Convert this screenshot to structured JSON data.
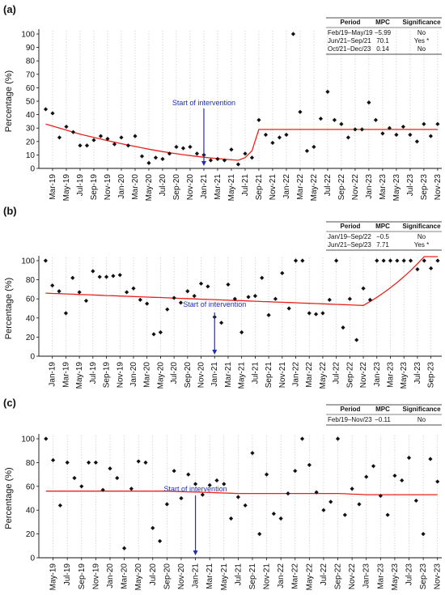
{
  "chart_data": [
    {
      "type": "scatter",
      "panel_label": "(a)",
      "ylabel": "Percentage (%)",
      "ylim": [
        0,
        100
      ],
      "yticks": [
        0,
        10,
        20,
        30,
        40,
        50,
        60,
        70,
        80,
        90,
        100
      ],
      "grid": "vertical dotted",
      "tick_labels": [
        "Mar-19",
        "May-19",
        "Jul-19",
        "Sep-19",
        "Nov-19",
        "Jan-20",
        "Mar-20",
        "May-20",
        "Jul-20",
        "Sep-20",
        "Nov-20",
        "Jan-21",
        "Mar-21",
        "May-21",
        "Jul-21",
        "Sep-21",
        "Nov-21",
        "Jan-22",
        "Mar-22",
        "May-22",
        "Jul-22",
        "Sep-22",
        "Nov-22",
        "Jan-23",
        "Mar-23",
        "May-23",
        "Jul-23",
        "Sep-23",
        "Nov-23"
      ],
      "x": [
        "Feb-19",
        "Mar-19",
        "Apr-19",
        "May-19",
        "Jun-19",
        "Jul-19",
        "Aug-19",
        "Sep-19",
        "Oct-19",
        "Nov-19",
        "Dec-19",
        "Jan-20",
        "Feb-20",
        "Mar-20",
        "Apr-20",
        "May-20",
        "Jun-20",
        "Jul-20",
        "Aug-20",
        "Sep-20",
        "Oct-20",
        "Nov-20",
        "Dec-20",
        "Jan-21",
        "Feb-21",
        "Mar-21",
        "Apr-21",
        "May-21",
        "Jun-21",
        "Jul-21",
        "Aug-21",
        "Sep-21",
        "Oct-21",
        "Nov-21",
        "Dec-21",
        "Jan-22",
        "Feb-22",
        "Mar-22",
        "Apr-22",
        "May-22",
        "Jun-22",
        "Jul-22",
        "Aug-22",
        "Sep-22",
        "Oct-22",
        "Nov-22",
        "Dec-22",
        "Jan-23",
        "Feb-23",
        "Mar-23",
        "Apr-23",
        "May-23",
        "Jun-23",
        "Jul-23",
        "Aug-23",
        "Sep-23",
        "Oct-23",
        "Nov-23"
      ],
      "observed": [
        44,
        41,
        23,
        31,
        27,
        17,
        17,
        21,
        24,
        22,
        18,
        23,
        17,
        24,
        9,
        4,
        8,
        7,
        11,
        16,
        15,
        16,
        11,
        10,
        6,
        7,
        6,
        14,
        3,
        11,
        8,
        36,
        25,
        19,
        23,
        25,
        100,
        42,
        13,
        16,
        37,
        57,
        36,
        33,
        23,
        29,
        29,
        49,
        36,
        26,
        30,
        25,
        31,
        25,
        20,
        33,
        24,
        33
      ],
      "trend": [
        33,
        31.5,
        30,
        28.5,
        27,
        25.5,
        24.2,
        23,
        21.8,
        20.6,
        19.5,
        18.4,
        17.3,
        16.3,
        15.3,
        14.3,
        13.4,
        12.5,
        11.7,
        10.9,
        10.2,
        9.5,
        8.9,
        8.3,
        7.8,
        7.3,
        6.8,
        6.4,
        6,
        8,
        13,
        29,
        29,
        29,
        29,
        29,
        29,
        29,
        29,
        29,
        29,
        29,
        29,
        29,
        29,
        29,
        29,
        29,
        29,
        29,
        29,
        29,
        29,
        29,
        29,
        29,
        29,
        29
      ],
      "intervention": {
        "label": "Start of intervention",
        "x": "Jan-21"
      },
      "table": {
        "headers": [
          "Period",
          "MPC",
          "Significance"
        ],
        "rows": [
          [
            "Feb/19–May/19",
            "−5.99",
            "No"
          ],
          [
            "Jun/21–Sep/21",
            "70.1",
            "Yes *"
          ],
          [
            "Oct/21–Dec/23",
            "0.14",
            "No"
          ]
        ]
      }
    },
    {
      "type": "scatter",
      "panel_label": "(b)",
      "ylabel": "Percentage (%)",
      "ylim": [
        0,
        100
      ],
      "yticks": [
        0,
        20,
        40,
        60,
        80,
        100
      ],
      "grid": "vertical dotted",
      "tick_labels": [
        "Jan-19",
        "Mar-19",
        "May-19",
        "Jul-19",
        "Sep-19",
        "Nov-19",
        "Jan-20",
        "Mar-20",
        "May-20",
        "Jul-20",
        "Sep-20",
        "Nov-20",
        "Jan-21",
        "Mar-21",
        "May-21",
        "Jul-21",
        "Sep-21",
        "Nov-21",
        "Jan-22",
        "Mar-22",
        "May-22",
        "Jul-22",
        "Sep-22",
        "Nov-22",
        "Jan-23",
        "Mar-23",
        "May-23",
        "Jul-23",
        "Sep-23"
      ],
      "x": [
        "Dec-18",
        "Jan-19",
        "Feb-19",
        "Mar-19",
        "Apr-19",
        "May-19",
        "Jun-19",
        "Jul-19",
        "Aug-19",
        "Sep-19",
        "Oct-19",
        "Nov-19",
        "Dec-19",
        "Jan-20",
        "Feb-20",
        "Mar-20",
        "Apr-20",
        "May-20",
        "Jun-20",
        "Jul-20",
        "Aug-20",
        "Sep-20",
        "Oct-20",
        "Nov-20",
        "Dec-20",
        "Jan-21",
        "Feb-21",
        "Mar-21",
        "Apr-21",
        "May-21",
        "Jun-21",
        "Jul-21",
        "Aug-21",
        "Sep-21",
        "Oct-21",
        "Nov-21",
        "Dec-21",
        "Jan-22",
        "Feb-22",
        "Mar-22",
        "Apr-22",
        "May-22",
        "Jun-22",
        "Jul-22",
        "Aug-22",
        "Sep-22",
        "Oct-22",
        "Nov-22",
        "Dec-22",
        "Jan-23",
        "Feb-23",
        "Mar-23",
        "Apr-23",
        "May-23",
        "Jun-23",
        "Jul-23",
        "Aug-23",
        "Sep-23",
        "Oct-23"
      ],
      "observed": [
        100,
        74,
        68,
        45,
        82,
        67,
        58,
        89,
        83,
        83,
        84,
        85,
        67,
        71,
        59,
        55,
        23,
        25,
        49,
        61,
        56,
        68,
        63,
        76,
        73,
        41,
        35,
        75,
        60,
        25,
        62,
        63,
        82,
        43,
        60,
        87,
        50,
        100,
        100,
        45,
        44,
        45,
        59,
        100,
        30,
        60,
        17,
        71,
        59,
        100,
        100,
        100,
        100,
        100,
        100,
        91,
        100,
        92,
        100
      ],
      "trend": [
        66,
        65.7,
        65.5,
        65.2,
        64.9,
        64.6,
        64.4,
        64.1,
        63.8,
        63.5,
        63.3,
        63,
        62.7,
        62.5,
        62.2,
        61.9,
        61.6,
        61.4,
        61.1,
        60.8,
        60.5,
        60.3,
        60,
        59.7,
        59.4,
        59.2,
        58.9,
        58.6,
        58.3,
        58.1,
        57.8,
        57.5,
        57.2,
        57,
        56.7,
        56.4,
        56.2,
        55.9,
        55.6,
        55.3,
        55.1,
        54.8,
        54.5,
        54.2,
        54,
        53.7,
        53.4,
        53.1,
        57.2,
        61.6,
        66.4,
        71.6,
        77.2,
        83.2,
        89.7,
        96.7,
        104.2,
        104.2,
        104.2
      ],
      "intervention": {
        "label": "Start of intervention",
        "x": "Jan-21"
      },
      "table": {
        "headers": [
          "Period",
          "MPC",
          "Significance"
        ],
        "rows": [
          [
            "Jan/19–Sep/22",
            "−0.5",
            "No"
          ],
          [
            "Jun/21–Sep/23",
            "7.71",
            "Yes *"
          ]
        ]
      }
    },
    {
      "type": "scatter",
      "panel_label": "(c)",
      "ylabel": "Percentage (%)",
      "ylim": [
        0,
        100
      ],
      "yticks": [
        0,
        20,
        40,
        60,
        80,
        100
      ],
      "grid": "vertical dotted",
      "tick_labels": [
        "May-19",
        "Jul-19",
        "Sep-19",
        "Nov-19",
        "Jan-20",
        "Mar-20",
        "May-20",
        "Jul-20",
        "Sep-20",
        "Nov-20",
        "Jan-21",
        "Mar-21",
        "May-21",
        "Jul-21",
        "Sep-21",
        "Nov-21",
        "Jan-22",
        "Mar-22",
        "May-22",
        "Jul-22",
        "Sep-22",
        "Nov-22",
        "Jan-23",
        "Mar-23",
        "May-23",
        "Jul-23",
        "Sep-23",
        "Nov-23"
      ],
      "x": [
        "Apr-19",
        "May-19",
        "Jun-19",
        "Jul-19",
        "Aug-19",
        "Sep-19",
        "Oct-19",
        "Nov-19",
        "Dec-19",
        "Jan-20",
        "Feb-20",
        "Mar-20",
        "Apr-20",
        "May-20",
        "Jun-20",
        "Jul-20",
        "Aug-20",
        "Sep-20",
        "Oct-20",
        "Nov-20",
        "Dec-20",
        "Jan-21",
        "Feb-21",
        "Mar-21",
        "Apr-21",
        "May-21",
        "Jun-21",
        "Jul-21",
        "Aug-21",
        "Sep-21",
        "Oct-21",
        "Nov-21",
        "Dec-21",
        "Jan-22",
        "Feb-22",
        "Mar-22",
        "Apr-22",
        "May-22",
        "Jun-22",
        "Jul-22",
        "Aug-22",
        "Sep-22",
        "Oct-22",
        "Nov-22",
        "Dec-22",
        "Jan-23",
        "Feb-23",
        "Mar-23",
        "Apr-23",
        "May-23",
        "Jun-23",
        "Jul-23",
        "Aug-23",
        "Sep-23",
        "Oct-23",
        "Nov-23"
      ],
      "observed": [
        100,
        82,
        44,
        80,
        67,
        60,
        80,
        80,
        57,
        75,
        67,
        8,
        58,
        81,
        80,
        25,
        14,
        45,
        73,
        50,
        70,
        62,
        53,
        61,
        65,
        62,
        33,
        51,
        44,
        88,
        20,
        70,
        37,
        33,
        54,
        73,
        100,
        78,
        55,
        40,
        47,
        100,
        36,
        58,
        45,
        68,
        77,
        52,
        36,
        69,
        65,
        84,
        48,
        20,
        83,
        64
      ],
      "trend": [
        56,
        56,
        56,
        56,
        56,
        56,
        56,
        56,
        56,
        56,
        56,
        56,
        56,
        56,
        56,
        56,
        56,
        56,
        55.8,
        55.6,
        55.4,
        55.2,
        55,
        54.8,
        54.6,
        54.4,
        54.2,
        54,
        54,
        54,
        54,
        54,
        54,
        54,
        54,
        54,
        54,
        54,
        54,
        54,
        54,
        54,
        53.8,
        53.5,
        53.3,
        53,
        53,
        53,
        53,
        53,
        53,
        53,
        53,
        53,
        53,
        53
      ],
      "intervention": {
        "label": "Start of intervention",
        "x": "Jan-21"
      },
      "table": {
        "headers": [
          "Period",
          "MPC",
          "Significance"
        ],
        "rows": [
          [
            "Feb/19–Nov/23",
            "−0.11",
            "No"
          ]
        ]
      }
    }
  ],
  "colors": {
    "point": "#111111",
    "trend": "#e8221b",
    "annotation": "#1f2fb5",
    "grid": "#bcbcbc"
  },
  "icons": {
    "intervention_marker": "arrow-down-icon"
  }
}
